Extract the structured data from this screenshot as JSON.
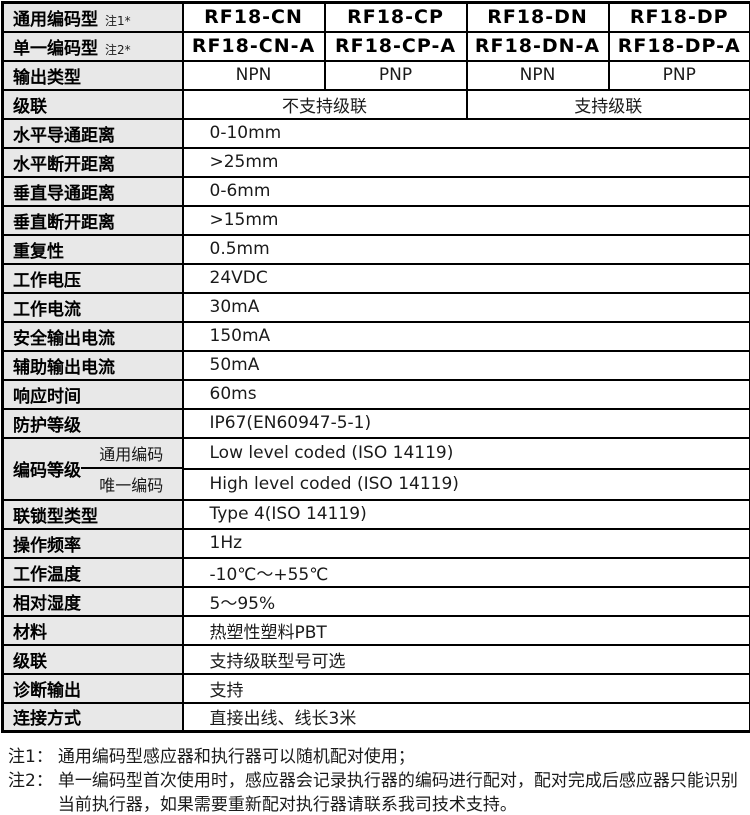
{
  "colors": {
    "header_bg": "#e8e8e8",
    "border": "#000000",
    "text": "#1a1a1a"
  },
  "model_rows": [
    {
      "label": "通用编码型",
      "note_ref": "注1*",
      "models": [
        "RF18-CN",
        "RF18-CP",
        "RF18-DN",
        "RF18-DP"
      ]
    },
    {
      "label": "单一编码型",
      "note_ref": "注2*",
      "models": [
        "RF18-CN-A",
        "RF18-CP-A",
        "RF18-DN-A",
        "RF18-DP-A"
      ]
    }
  ],
  "output_type_row": {
    "label": "输出类型",
    "values": [
      "NPN",
      "PNP",
      "NPN",
      "PNP"
    ]
  },
  "cascade_row": {
    "label": "级联",
    "left_value": "不支持级联",
    "right_value": "支持级联"
  },
  "spec_rows_upper": [
    {
      "label": "水平导通距离",
      "value": "0-10mm"
    },
    {
      "label": "水平断开距离",
      "value": ">25mm"
    },
    {
      "label": "垂直导通距离",
      "value": "0-6mm"
    },
    {
      "label": "垂直断开距离",
      "value": ">15mm"
    },
    {
      "label": "重复性",
      "value": "0.5mm"
    },
    {
      "label": "工作电压",
      "value": "24VDC"
    },
    {
      "label": "工作电流",
      "value": "30mA"
    },
    {
      "label": "安全输出电流",
      "value": "150mA"
    },
    {
      "label": "辅助输出电流",
      "value": "50mA"
    },
    {
      "label": "响应时间",
      "value": "60ms"
    },
    {
      "label": "防护等级",
      "value": "IP67(EN60947-5-1)"
    }
  ],
  "coding_row": {
    "label": "编码等级",
    "subs": [
      {
        "name": "通用编码",
        "value": "Low level coded (ISO 14119)"
      },
      {
        "name": "唯一编码",
        "value": "High level coded (ISO 14119)"
      }
    ]
  },
  "spec_rows_lower": [
    {
      "label": "联锁型类型",
      "value": "Type 4(ISO 14119)"
    },
    {
      "label": "操作频率",
      "value": "1Hz"
    },
    {
      "label": "工作温度",
      "value": "-10℃～+55℃"
    },
    {
      "label": "相对湿度",
      "value": "5～95%"
    },
    {
      "label": "材料",
      "value": "热塑性塑料PBT"
    },
    {
      "label": "级联",
      "value": "支持级联型号可选"
    },
    {
      "label": "诊断输出",
      "value": "支持"
    },
    {
      "label": "连接方式",
      "value": "直接出线、线长3米"
    }
  ],
  "notes": [
    {
      "ref": "注1：",
      "text": "通用编码型感应器和执行器可以随机配对使用；"
    },
    {
      "ref": "注2：",
      "text": "单一编码型首次使用时，感应器会记录执行器的编码进行配对，配对完成后感应器只能识别当前执行器，如果需要重新配对执行器请联系我司技术支持。"
    }
  ]
}
